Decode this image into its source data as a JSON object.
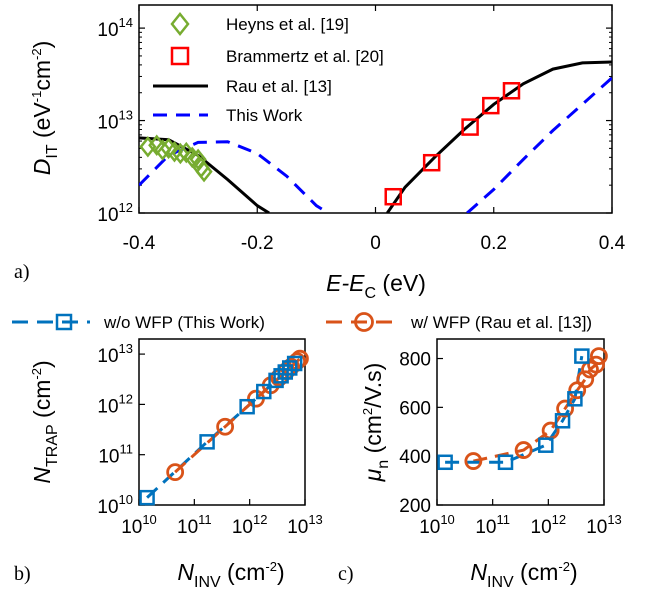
{
  "chart_data": [
    {
      "panel_label": "a)",
      "type": "line",
      "xlabel": {
        "main": "E-E",
        "sub": "C",
        "unit": " (eV)"
      },
      "ylabel": {
        "main": "D",
        "sub": "IT",
        "unit": " (eV",
        "unit_sup1": "-1",
        "unit_mid": "cm",
        "unit_sup2": "-2",
        "unit_end": ")"
      },
      "xlim": [
        -0.4,
        0.4
      ],
      "ylim_log10": [
        12,
        14.25
      ],
      "yscale": "log",
      "xticks": [
        "-0.4",
        "-0.2",
        "0",
        "0.2",
        "0.4"
      ],
      "yticks": [
        {
          "base": "10",
          "exp": "12"
        },
        {
          "base": "10",
          "exp": "13"
        },
        {
          "base": "10",
          "exp": "14"
        }
      ],
      "colors": {
        "heyns": "#77ac30",
        "brammertz": "#ff0000",
        "rau": "#000000",
        "this_work": "#0000ff"
      },
      "legend_location": "top-left",
      "series": [
        {
          "name": "Heyns et al. [19]",
          "marker": "diamond",
          "points": [
            [
              -0.385,
              5200000000000.0
            ],
            [
              -0.37,
              5400000000000.0
            ],
            [
              -0.36,
              4800000000000.0
            ],
            [
              -0.35,
              5000000000000.0
            ],
            [
              -0.34,
              4600000000000.0
            ],
            [
              -0.33,
              4400000000000.0
            ],
            [
              -0.32,
              4500000000000.0
            ],
            [
              -0.31,
              4000000000000.0
            ],
            [
              -0.3,
              3800000000000.0
            ],
            [
              -0.295,
              3100000000000.0
            ],
            [
              -0.29,
              2800000000000.0
            ]
          ]
        },
        {
          "name": "Brammertz et al. [20]",
          "marker": "square",
          "points": [
            [
              0.03,
              1500000000000.0
            ],
            [
              0.095,
              3500000000000.0
            ],
            [
              0.16,
              8500000000000.0
            ],
            [
              0.195,
              14500000000000.0
            ],
            [
              0.23,
              21000000000000.0
            ]
          ]
        },
        {
          "name": "Rau et al. [13]",
          "style": "solid",
          "points": [
            [
              -0.4,
              6500000000000.0
            ],
            [
              -0.35,
              6200000000000.0
            ],
            [
              -0.3,
              4200000000000.0
            ],
            [
              -0.25,
              2300000000000.0
            ],
            [
              -0.2,
              1200000000000.0
            ],
            [
              -0.18,
              1000000000000.0
            ],
            [
              0.02,
              1000000000000.0
            ],
            [
              0.05,
              1900000000000.0
            ],
            [
              0.1,
              4000000000000.0
            ],
            [
              0.15,
              8000000000000.0
            ],
            [
              0.2,
              15000000000000.0
            ],
            [
              0.25,
              25000000000000.0
            ],
            [
              0.3,
              36000000000000.0
            ],
            [
              0.35,
              42000000000000.0
            ],
            [
              0.4,
              43000000000000.0
            ]
          ]
        },
        {
          "name": "This Work",
          "style": "dashed",
          "points": [
            [
              -0.4,
              2000000000000.0
            ],
            [
              -0.35,
              4200000000000.0
            ],
            [
              -0.3,
              5800000000000.0
            ],
            [
              -0.25,
              5900000000000.0
            ],
            [
              -0.2,
              4400000000000.0
            ],
            [
              -0.15,
              2500000000000.0
            ],
            [
              -0.1,
              1200000000000.0
            ],
            [
              -0.08,
              1000000000000.0
            ],
            [
              0.155,
              1000000000000.0
            ],
            [
              0.2,
              1800000000000.0
            ],
            [
              0.25,
              3800000000000.0
            ],
            [
              0.3,
              7800000000000.0
            ],
            [
              0.35,
              15000000000000.0
            ],
            [
              0.4,
              29000000000000.0
            ]
          ]
        }
      ]
    },
    {
      "panel_label": "b)",
      "type": "line",
      "xscale": "log",
      "yscale": "log",
      "xlabel": {
        "main": "N",
        "sub": "INV",
        "unit": " (cm",
        "unit_sup": "-2",
        "unit_end": ")"
      },
      "ylabel": {
        "main": "N",
        "sub": "TRAP",
        "unit": " (cm",
        "unit_sup": "-2",
        "unit_end": ")"
      },
      "xlim_log10": [
        10,
        13
      ],
      "ylim_log10": [
        10,
        13.3
      ],
      "xticks": [
        {
          "base": "10",
          "exp": "10"
        },
        {
          "base": "10",
          "exp": "11"
        },
        {
          "base": "10",
          "exp": "12"
        },
        {
          "base": "10",
          "exp": "13"
        }
      ],
      "yticks": [
        {
          "base": "10",
          "exp": "10"
        },
        {
          "base": "10",
          "exp": "11"
        },
        {
          "base": "10",
          "exp": "12"
        },
        {
          "base": "10",
          "exp": "13"
        }
      ],
      "colors": {
        "wo_wfp": "#0072bd",
        "w_wfp": "#d95319"
      },
      "series": [
        {
          "name": "w/o WFP (This Work)",
          "marker": "square",
          "x": [
            14000000000.0,
            170000000000.0,
            900000000000.0,
            1800000000000.0,
            3000000000000.0,
            3700000000000.0,
            4400000000000.0,
            5300000000000.0,
            6500000000000.0
          ],
          "y": [
            14000000000.0,
            180000000000.0,
            900000000000.0,
            1800000000000.0,
            3000000000000.0,
            3700000000000.0,
            4400000000000.0,
            5300000000000.0,
            6500000000000.0
          ]
        },
        {
          "name": "w/ WFP (Rau et al. [13])",
          "marker": "circle",
          "x": [
            45000000000.0,
            360000000000.0,
            1300000000000.0,
            2400000000000.0,
            3400000000000.0,
            4600000000000.0,
            5600000000000.0,
            7200000000000.0,
            8100000000000.0
          ],
          "y": [
            45000000000.0,
            360000000000.0,
            1300000000000.0,
            2400000000000.0,
            3400000000000.0,
            4600000000000.0,
            5600000000000.0,
            7200000000000.0,
            8100000000000.0
          ]
        }
      ]
    },
    {
      "panel_label": "c)",
      "type": "line",
      "xscale": "log",
      "xlabel": {
        "main": "N",
        "sub": "INV",
        "unit": " (cm",
        "unit_sup": "-2",
        "unit_end": ")"
      },
      "ylabel": {
        "main": "μ",
        "sub": "n",
        "unit": " (cm",
        "unit_sup": "2",
        "unit_end": "/V.s)"
      },
      "xlim_log10": [
        10,
        13
      ],
      "ylim": [
        200,
        880
      ],
      "xticks": [
        {
          "base": "10",
          "exp": "10"
        },
        {
          "base": "10",
          "exp": "11"
        },
        {
          "base": "10",
          "exp": "12"
        },
        {
          "base": "10",
          "exp": "13"
        }
      ],
      "yticks": [
        "200",
        "400",
        "600",
        "800"
      ],
      "series": [
        {
          "name": "w/o WFP (This Work)",
          "marker": "square",
          "x": [
            14000000000.0,
            170000000000.0,
            900000000000.0,
            1800000000000.0,
            3000000000000.0,
            4000000000000.0
          ],
          "y": [
            375,
            375,
            445,
            545,
            635,
            810
          ]
        },
        {
          "name": "w/ WFP (Rau et al. [13])",
          "marker": "circle",
          "x": [
            45000000000.0,
            360000000000.0,
            1100000000000.0,
            2000000000000.0,
            3300000000000.0,
            4600000000000.0,
            5600000000000.0,
            7200000000000.0,
            8100000000000.0
          ],
          "y": [
            380,
            425,
            505,
            595,
            670,
            715,
            755,
            775,
            810
          ]
        }
      ]
    }
  ]
}
